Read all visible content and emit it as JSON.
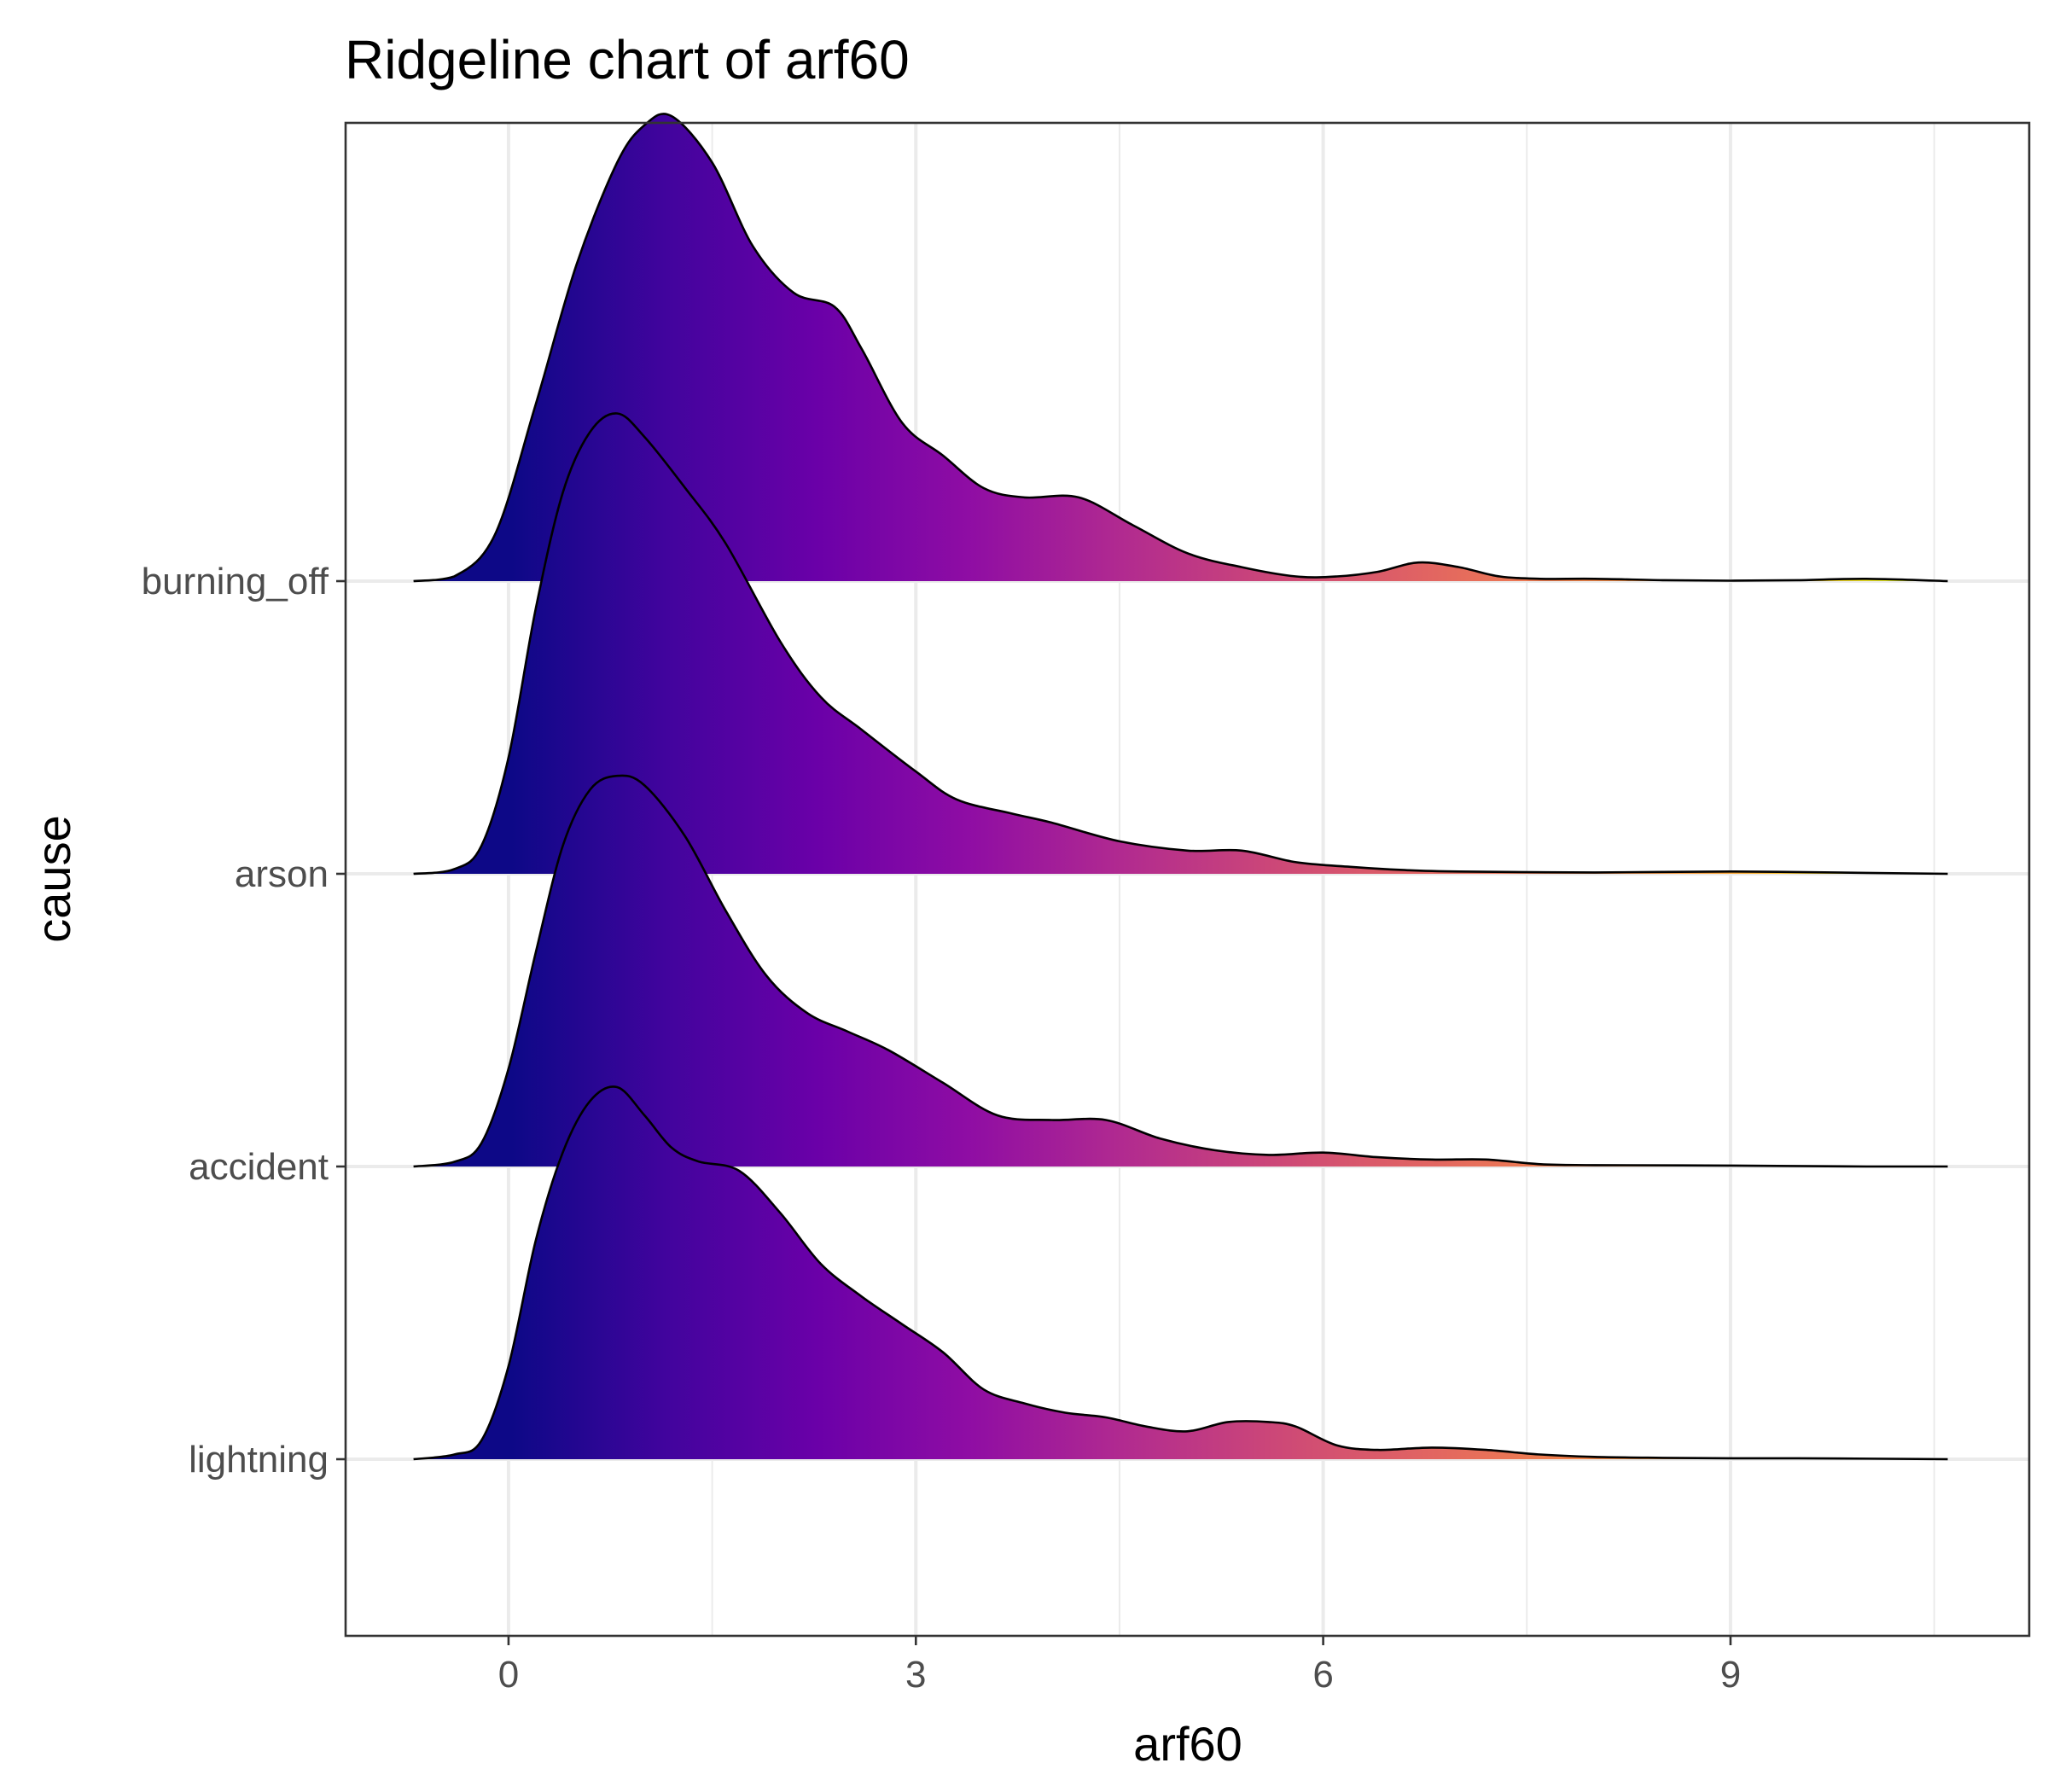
{
  "chart_data": {
    "type": "ridgeline",
    "title": "Ridgeline chart of arf60",
    "xlabel": "arf60",
    "ylabel": "cause",
    "xlim": [
      -1.2,
      11.2
    ],
    "x_ticks": [
      0,
      3,
      6,
      9
    ],
    "x_tick_labels": [
      "0",
      "3",
      "6",
      "9"
    ],
    "categories": [
      "burning_off",
      "arson",
      "accident",
      "lightning"
    ],
    "grid": true,
    "fill_scale": "plasma",
    "fill_range": [
      0,
      10.5
    ],
    "series": [
      {
        "name": "burning_off",
        "x": [
          -0.7,
          -0.4,
          -0.1,
          0.2,
          0.5,
          0.8,
          1.0,
          1.2,
          1.5,
          1.8,
          2.1,
          2.4,
          2.6,
          2.9,
          3.2,
          3.5,
          3.8,
          4.2,
          4.6,
          5.0,
          5.4,
          5.8,
          6.1,
          6.4,
          6.7,
          7.0,
          7.3,
          7.6,
          8.0,
          8.5,
          9.0,
          9.5,
          10.0,
          10.6
        ],
        "y": [
          0.0,
          0.01,
          0.1,
          0.38,
          0.68,
          0.9,
          0.98,
          1.0,
          0.9,
          0.72,
          0.62,
          0.59,
          0.5,
          0.34,
          0.27,
          0.2,
          0.18,
          0.18,
          0.12,
          0.06,
          0.03,
          0.01,
          0.01,
          0.02,
          0.04,
          0.03,
          0.01,
          0.005,
          0.005,
          0.002,
          0.001,
          0.002,
          0.005,
          0.0
        ]
      },
      {
        "name": "arson",
        "x": [
          -0.7,
          -0.4,
          -0.2,
          0.0,
          0.2,
          0.4,
          0.6,
          0.8,
          1.0,
          1.3,
          1.6,
          2.0,
          2.3,
          2.6,
          3.0,
          3.3,
          3.7,
          4.0,
          4.5,
          5.0,
          5.4,
          5.8,
          6.2,
          6.6,
          7.0,
          8.0,
          9.0,
          10.0,
          10.6
        ],
        "y": [
          0.0,
          0.01,
          0.06,
          0.25,
          0.57,
          0.82,
          0.95,
          0.99,
          0.94,
          0.83,
          0.71,
          0.5,
          0.38,
          0.31,
          0.22,
          0.16,
          0.13,
          0.11,
          0.07,
          0.05,
          0.05,
          0.025,
          0.015,
          0.008,
          0.005,
          0.003,
          0.005,
          0.002,
          0.0
        ]
      },
      {
        "name": "accident",
        "x": [
          -0.7,
          -0.4,
          -0.2,
          0.0,
          0.2,
          0.4,
          0.6,
          0.8,
          1.0,
          1.3,
          1.6,
          1.9,
          2.2,
          2.5,
          2.8,
          3.2,
          3.6,
          4.0,
          4.4,
          4.8,
          5.2,
          5.6,
          6.0,
          6.4,
          6.8,
          7.2,
          7.6,
          8.0,
          9.0,
          10.0,
          10.6
        ],
        "y": [
          0.0,
          0.01,
          0.05,
          0.21,
          0.46,
          0.69,
          0.81,
          0.84,
          0.82,
          0.71,
          0.55,
          0.41,
          0.33,
          0.29,
          0.25,
          0.18,
          0.11,
          0.1,
          0.1,
          0.06,
          0.035,
          0.025,
          0.03,
          0.02,
          0.015,
          0.015,
          0.005,
          0.003,
          0.002,
          0.0,
          0.0
        ]
      },
      {
        "name": "lightning",
        "x": [
          -0.7,
          -0.4,
          -0.2,
          0.0,
          0.2,
          0.4,
          0.6,
          0.8,
          1.0,
          1.2,
          1.4,
          1.7,
          2.0,
          2.3,
          2.6,
          2.9,
          3.2,
          3.5,
          3.8,
          4.1,
          4.4,
          4.7,
          5.0,
          5.3,
          5.6,
          5.8,
          6.1,
          6.4,
          6.8,
          7.2,
          7.6,
          8.0,
          8.5,
          9.0,
          9.5,
          10.6
        ],
        "y": [
          0.0,
          0.01,
          0.04,
          0.2,
          0.47,
          0.66,
          0.77,
          0.8,
          0.74,
          0.67,
          0.64,
          0.62,
          0.53,
          0.42,
          0.35,
          0.29,
          0.23,
          0.15,
          0.12,
          0.1,
          0.09,
          0.07,
          0.06,
          0.08,
          0.08,
          0.07,
          0.03,
          0.02,
          0.025,
          0.02,
          0.01,
          0.005,
          0.003,
          0.002,
          0.002,
          0.0
        ]
      }
    ]
  }
}
